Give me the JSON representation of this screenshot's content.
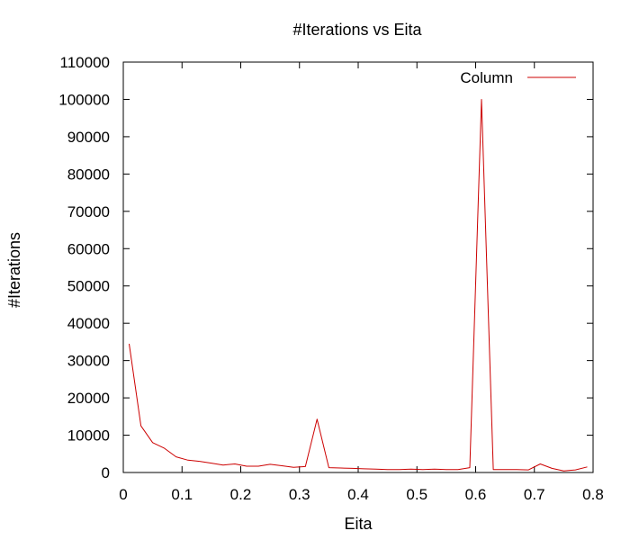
{
  "chart_data": {
    "type": "line",
    "title": "#Iterations vs Eita",
    "xlabel": "Eita",
    "ylabel": "#Iterations",
    "xlim": [
      0,
      0.8
    ],
    "ylim": [
      0,
      110000
    ],
    "xticks": [
      "0",
      "0.1",
      "0.2",
      "0.3",
      "0.4",
      "0.5",
      "0.6",
      "0.7",
      "0.8"
    ],
    "yticks": [
      "0",
      "10000",
      "20000",
      "30000",
      "40000",
      "50000",
      "60000",
      "70000",
      "80000",
      "90000",
      "100000",
      "110000"
    ],
    "grid": false,
    "legend_position": "top-right",
    "series": [
      {
        "name": "Column",
        "color": "#cc0000",
        "x": [
          0.01,
          0.03,
          0.05,
          0.07,
          0.09,
          0.11,
          0.13,
          0.15,
          0.17,
          0.19,
          0.21,
          0.23,
          0.25,
          0.27,
          0.29,
          0.31,
          0.33,
          0.35,
          0.37,
          0.39,
          0.41,
          0.43,
          0.45,
          0.47,
          0.49,
          0.51,
          0.53,
          0.55,
          0.57,
          0.59,
          0.61,
          0.63,
          0.65,
          0.67,
          0.69,
          0.71,
          0.73,
          0.75,
          0.77,
          0.79
        ],
        "y": [
          34500,
          12500,
          8000,
          6500,
          4200,
          3300,
          3000,
          2500,
          2000,
          2300,
          1700,
          1700,
          2200,
          1800,
          1400,
          1600,
          14300,
          1300,
          1200,
          1100,
          1000,
          900,
          800,
          800,
          900,
          800,
          900,
          800,
          800,
          1300,
          100000,
          800,
          800,
          800,
          700,
          2300,
          1100,
          400,
          700,
          1500
        ]
      }
    ]
  }
}
